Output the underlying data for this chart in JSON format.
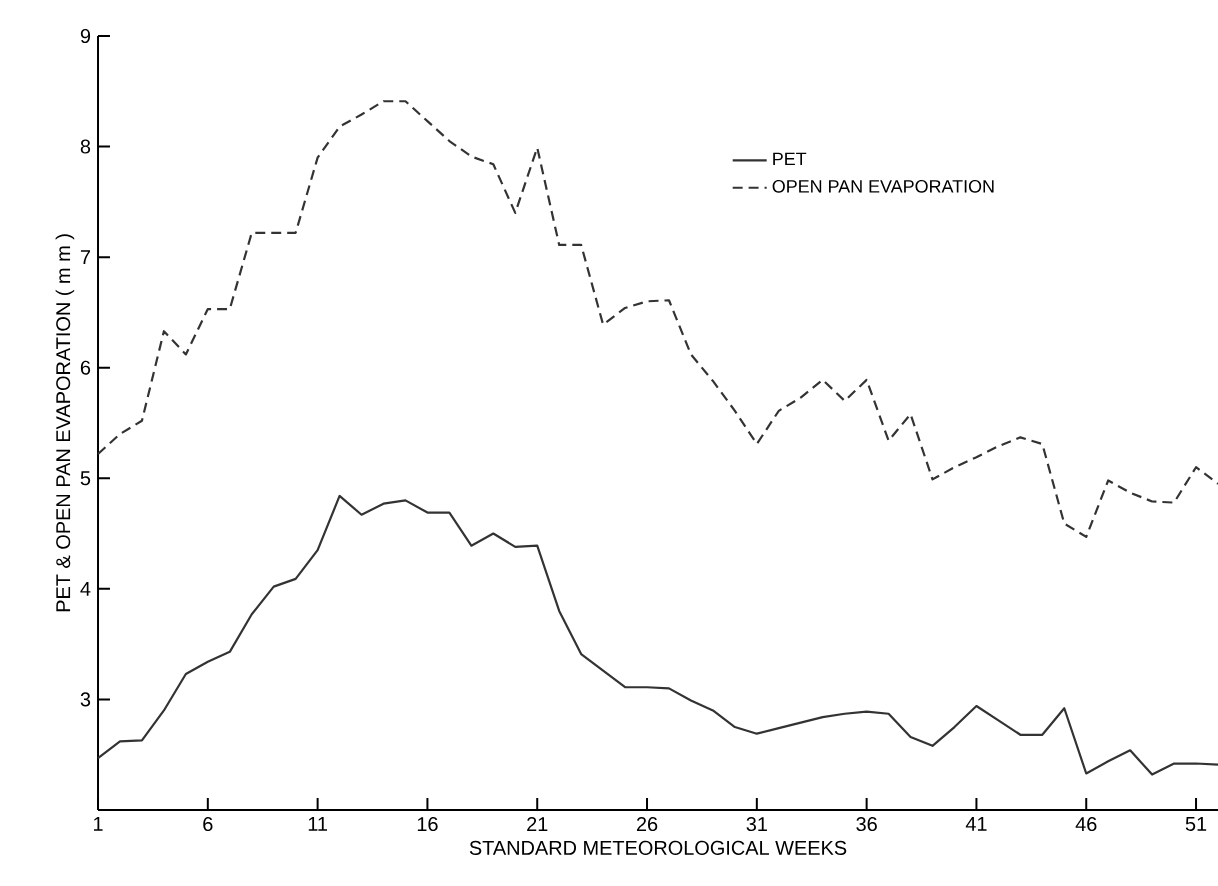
{
  "chart_data": {
    "type": "line",
    "xlabel": "STANDARD METEOROLOGICAL WEEKS",
    "ylabel": "PET & OPEN PAN EVAPORATION ( m m )",
    "x": [
      1,
      2,
      3,
      4,
      5,
      6,
      7,
      8,
      9,
      10,
      11,
      12,
      13,
      14,
      15,
      16,
      17,
      18,
      19,
      20,
      21,
      22,
      23,
      24,
      25,
      26,
      27,
      28,
      29,
      30,
      31,
      32,
      33,
      34,
      35,
      36,
      37,
      38,
      39,
      40,
      41,
      42,
      43,
      44,
      45,
      46,
      47,
      48,
      49,
      50,
      51,
      52
    ],
    "xlim": [
      1,
      52
    ],
    "xticks": [
      1,
      6,
      11,
      16,
      21,
      26,
      31,
      36,
      41,
      46,
      51
    ],
    "ylim": [
      2,
      9
    ],
    "yticks": [
      3,
      4,
      5,
      6,
      7,
      8,
      9
    ],
    "grid": false,
    "legend": "top right",
    "marker": "none",
    "series": [
      {
        "name": "PET",
        "color": "#333333",
        "line_style": "solid",
        "values": [
          2.47,
          2.62,
          2.63,
          2.9,
          3.23,
          3.34,
          3.43,
          3.77,
          4.02,
          4.09,
          4.35,
          4.84,
          4.67,
          4.77,
          4.8,
          4.69,
          4.69,
          4.39,
          4.5,
          4.38,
          4.39,
          3.8,
          3.41,
          3.26,
          3.11,
          3.11,
          3.1,
          2.99,
          2.9,
          2.75,
          2.69,
          2.74,
          2.79,
          2.84,
          2.87,
          2.89,
          2.87,
          2.66,
          2.58,
          2.75,
          2.94,
          2.81,
          2.68,
          2.68,
          2.92,
          2.33,
          2.44,
          2.54,
          2.32,
          2.42,
          2.42,
          2.41
        ]
      },
      {
        "name": "OPEN PAN EVAPORATION",
        "color": "#333333",
        "line_style": "dashed",
        "values": [
          5.22,
          5.4,
          5.52,
          6.33,
          6.12,
          6.53,
          6.53,
          7.22,
          7.22,
          7.22,
          7.9,
          8.18,
          8.29,
          8.41,
          8.41,
          8.23,
          8.05,
          7.91,
          7.84,
          7.4,
          7.99,
          7.11,
          7.11,
          6.39,
          6.54,
          6.6,
          6.61,
          6.12,
          5.88,
          5.61,
          5.31,
          5.61,
          5.73,
          5.89,
          5.7,
          5.89,
          5.34,
          5.58,
          4.99,
          5.1,
          5.19,
          5.29,
          5.37,
          5.31,
          4.59,
          4.47,
          4.98,
          4.87,
          4.79,
          4.78,
          5.1,
          4.95
        ]
      }
    ]
  }
}
